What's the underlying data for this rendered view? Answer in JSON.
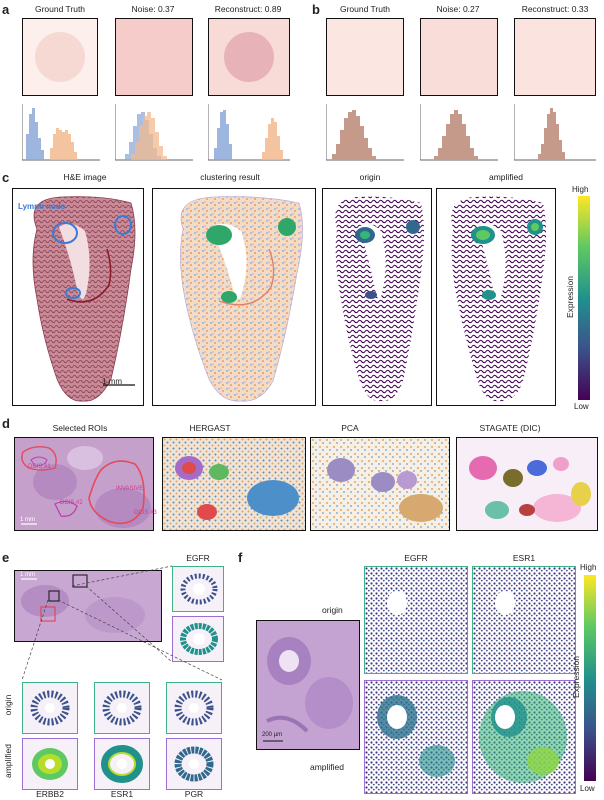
{
  "panel_a": {
    "letter": "a",
    "titles": [
      "Ground Truth",
      "Noise: 0.37",
      "Reconstruct: 0.89"
    ]
  },
  "panel_b": {
    "letter": "b",
    "titles": [
      "Ground Truth",
      "Noise: 0.27",
      "Reconstruct: 0.33"
    ]
  },
  "panel_c": {
    "letter": "c",
    "titles": [
      "H&E image",
      "clustering result",
      "origin",
      "amplified"
    ],
    "lymph_label": "Lymph node",
    "scale_label": "1 mm",
    "colorbar": {
      "high": "High",
      "low": "Low",
      "title": "Expression"
    }
  },
  "panel_d": {
    "letter": "d",
    "titles": [
      "Selected ROIs",
      "HERGAST",
      "PCA",
      "STAGATE (DIC)"
    ],
    "roi_labels": [
      "DCIS #1",
      "DCIS #2",
      "DCIS #3",
      "INVASIVE"
    ],
    "scale_label": "1 mm"
  },
  "panel_e": {
    "letter": "e",
    "gene_top": "EGFR",
    "scale_label": "1 mm",
    "row_labels": [
      "origin",
      "amplified"
    ],
    "genes": [
      "ERBB2",
      "ESR1",
      "PGR"
    ]
  },
  "panel_f": {
    "letter": "f",
    "genes": [
      "EGFR",
      "ESR1"
    ],
    "row_labels": [
      "origin",
      "amplified"
    ],
    "scale_label": "200 µm",
    "colorbar": {
      "high": "High",
      "low": "Low",
      "title": "Expression"
    }
  },
  "colors": {
    "blue_hist": "#8da9d8",
    "orange_hist": "#f2b98f",
    "frame_green": "#3cb386",
    "frame_purple": "#9b6fd1",
    "viridis_low": "#440154",
    "viridis_high": "#fde725"
  }
}
